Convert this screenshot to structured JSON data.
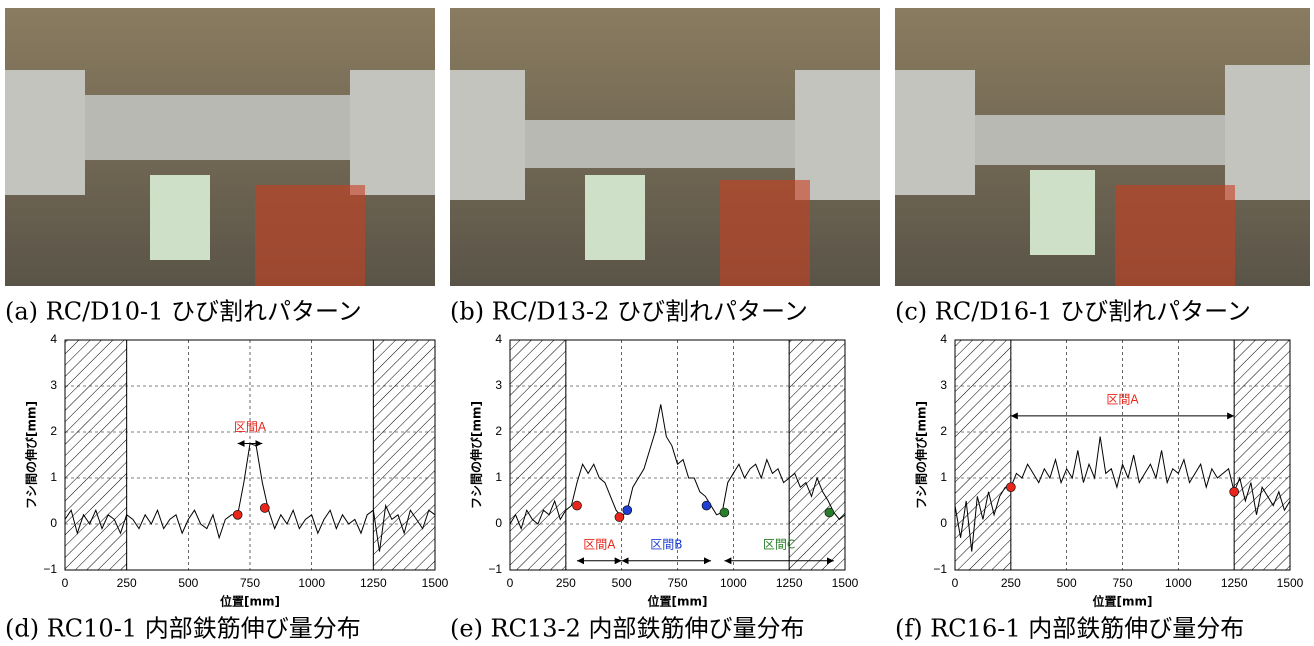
{
  "photo_captions": [
    "(a) RC/D10-1 ひび割れパターン",
    "(b) RC/D13-2 ひび割れパターン",
    "(c) RC/D16-1 ひび割れパターン"
  ],
  "chart_data": [
    {
      "type": "line",
      "title": "(d) RC10-1 内部鉄筋伸び量分布",
      "xlabel": "位置[mm]",
      "ylabel": "フシ間の伸び[mm]",
      "xlim": [
        0,
        1500
      ],
      "ylim": [
        -1,
        4
      ],
      "xticks": [
        0,
        250,
        500,
        750,
        1000,
        1250,
        1500
      ],
      "yticks": [
        {
          "value": -1,
          "label": "−1"
        },
        0,
        1,
        2,
        3,
        4
      ],
      "grid": true,
      "shaded_ranges": [
        [
          0,
          250
        ],
        [
          1250,
          1500
        ]
      ],
      "x": [
        0,
        25,
        50,
        75,
        100,
        125,
        150,
        175,
        200,
        225,
        250,
        275,
        300,
        325,
        350,
        375,
        400,
        425,
        450,
        475,
        500,
        525,
        550,
        575,
        600,
        625,
        650,
        675,
        700,
        725,
        750,
        775,
        800,
        825,
        850,
        875,
        900,
        925,
        950,
        975,
        1000,
        1025,
        1050,
        1075,
        1100,
        1125,
        1150,
        1175,
        1200,
        1225,
        1250,
        1275,
        1300,
        1325,
        1350,
        1375,
        1400,
        1425,
        1450,
        1475,
        1500
      ],
      "series": [
        {
          "color": "#000000",
          "values": [
            0.1,
            0.3,
            -0.2,
            0.2,
            0.0,
            0.3,
            -0.1,
            0.2,
            0.1,
            -0.2,
            0.2,
            0.1,
            -0.1,
            0.2,
            0.0,
            0.3,
            -0.1,
            0.1,
            0.2,
            -0.2,
            0.1,
            0.3,
            0.0,
            -0.1,
            0.2,
            -0.3,
            0.1,
            0.2,
            0.2,
            0.9,
            1.75,
            1.7,
            0.9,
            0.3,
            -0.1,
            0.2,
            0.0,
            0.3,
            -0.1,
            0.1,
            0.2,
            -0.2,
            0.1,
            0.3,
            -0.1,
            0.2,
            0.0,
            0.1,
            -0.2,
            0.2,
            0.3,
            -0.6,
            0.4,
            0.1,
            0.2,
            -0.2,
            0.3,
            0.1,
            -0.1,
            0.3,
            0.2
          ]
        }
      ],
      "markers": [
        {
          "x": 700,
          "y": 0.2,
          "color": "#e8261c"
        },
        {
          "x": 810,
          "y": 0.35,
          "color": "#e8261c"
        }
      ],
      "intervals": [
        {
          "label": "区間A",
          "x": [
            700,
            800
          ],
          "y": 1.75,
          "color": "#e8261c"
        }
      ]
    },
    {
      "type": "line",
      "title": "(e) RC13-2 内部鉄筋伸び量分布",
      "xlabel": "位置[mm]",
      "ylabel": "フシ間の伸び[mm]",
      "xlim": [
        0,
        1500
      ],
      "ylim": [
        -1,
        4
      ],
      "xticks": [
        0,
        250,
        500,
        750,
        1000,
        1250,
        1500
      ],
      "yticks": [
        {
          "value": -1,
          "label": "−1"
        },
        0,
        1,
        2,
        3,
        4
      ],
      "grid": true,
      "shaded_ranges": [
        [
          0,
          250
        ],
        [
          1250,
          1500
        ]
      ],
      "x": [
        0,
        25,
        50,
        75,
        100,
        125,
        150,
        175,
        200,
        225,
        250,
        275,
        300,
        325,
        350,
        375,
        400,
        425,
        450,
        475,
        500,
        525,
        550,
        575,
        600,
        625,
        650,
        675,
        700,
        725,
        750,
        775,
        800,
        825,
        850,
        875,
        900,
        925,
        950,
        975,
        1000,
        1025,
        1050,
        1075,
        1100,
        1125,
        1150,
        1175,
        1200,
        1225,
        1250,
        1275,
        1300,
        1325,
        1350,
        1375,
        1400,
        1425,
        1450,
        1475,
        1500
      ],
      "series": [
        {
          "color": "#000000",
          "values": [
            0.0,
            0.2,
            -0.1,
            0.3,
            0.1,
            0.0,
            0.3,
            0.2,
            0.5,
            0.1,
            0.3,
            0.4,
            0.9,
            1.3,
            1.1,
            1.3,
            1.0,
            0.9,
            0.6,
            0.3,
            0.15,
            0.3,
            0.8,
            1.0,
            1.2,
            1.6,
            2.0,
            2.6,
            1.9,
            1.7,
            1.3,
            1.4,
            1.0,
            1.0,
            0.7,
            0.6,
            0.4,
            0.2,
            0.25,
            0.9,
            1.1,
            1.3,
            1.0,
            1.2,
            1.3,
            1.0,
            1.4,
            1.1,
            1.2,
            0.9,
            1.0,
            1.1,
            0.8,
            0.9,
            0.6,
            1.0,
            0.7,
            0.5,
            0.25,
            0.1,
            0.2
          ]
        }
      ],
      "markers": [
        {
          "x": 300,
          "y": 0.4,
          "color": "#e8261c"
        },
        {
          "x": 490,
          "y": 0.15,
          "color": "#e8261c"
        },
        {
          "x": 525,
          "y": 0.3,
          "color": "#1f3fd1"
        },
        {
          "x": 880,
          "y": 0.4,
          "color": "#1f3fd1"
        },
        {
          "x": 960,
          "y": 0.25,
          "color": "#2a7d2a"
        },
        {
          "x": 1430,
          "y": 0.25,
          "color": "#2a7d2a"
        }
      ],
      "intervals": [
        {
          "label": "区間A",
          "x": [
            300,
            500
          ],
          "y": -0.8,
          "color": "#e8261c"
        },
        {
          "label": "区間B",
          "x": [
            500,
            900
          ],
          "y": -0.8,
          "color": "#1f3fd1"
        },
        {
          "label": "区間C",
          "x": [
            960,
            1450
          ],
          "y": -0.8,
          "color": "#2a7d2a"
        }
      ]
    },
    {
      "type": "line",
      "title": "(f) RC16-1 内部鉄筋伸び量分布",
      "xlabel": "位置[mm]",
      "ylabel": "フシ間の伸び[mm]",
      "xlim": [
        0,
        1500
      ],
      "ylim": [
        -1,
        4
      ],
      "xticks": [
        0,
        250,
        500,
        750,
        1000,
        1250,
        1500
      ],
      "yticks": [
        {
          "value": -1,
          "label": "−1"
        },
        0,
        1,
        2,
        3,
        4
      ],
      "grid": true,
      "shaded_ranges": [
        [
          0,
          250
        ],
        [
          1250,
          1500
        ]
      ],
      "x": [
        0,
        25,
        50,
        75,
        100,
        125,
        150,
        175,
        200,
        225,
        250,
        275,
        300,
        325,
        350,
        375,
        400,
        425,
        450,
        475,
        500,
        525,
        550,
        575,
        600,
        625,
        650,
        675,
        700,
        725,
        750,
        775,
        800,
        825,
        850,
        875,
        900,
        925,
        950,
        975,
        1000,
        1025,
        1050,
        1075,
        1100,
        1125,
        1150,
        1175,
        1200,
        1225,
        1250,
        1275,
        1300,
        1325,
        1350,
        1375,
        1400,
        1425,
        1450,
        1475,
        1500
      ],
      "series": [
        {
          "color": "#000000",
          "values": [
            0.4,
            -0.3,
            0.5,
            -0.6,
            0.6,
            0.1,
            0.7,
            0.2,
            0.6,
            0.8,
            0.8,
            1.1,
            1.0,
            1.3,
            1.1,
            0.9,
            1.2,
            1.0,
            1.4,
            0.9,
            1.2,
            1.0,
            1.6,
            0.9,
            1.3,
            1.0,
            1.9,
            1.1,
            1.2,
            0.8,
            1.3,
            1.0,
            1.5,
            0.9,
            1.1,
            1.3,
            1.0,
            1.6,
            0.9,
            1.2,
            1.1,
            1.4,
            0.9,
            1.1,
            1.3,
            0.8,
            1.2,
            1.0,
            1.1,
            1.2,
            0.7,
            1.0,
            0.5,
            0.9,
            0.2,
            0.8,
            0.6,
            0.4,
            0.7,
            0.3,
            0.5
          ]
        }
      ],
      "markers": [
        {
          "x": 250,
          "y": 0.8,
          "color": "#e8261c"
        },
        {
          "x": 1250,
          "y": 0.7,
          "color": "#e8261c"
        }
      ],
      "intervals": [
        {
          "label": "区間A",
          "x": [
            250,
            1250
          ],
          "y": 2.35,
          "color": "#e8261c"
        }
      ]
    }
  ]
}
